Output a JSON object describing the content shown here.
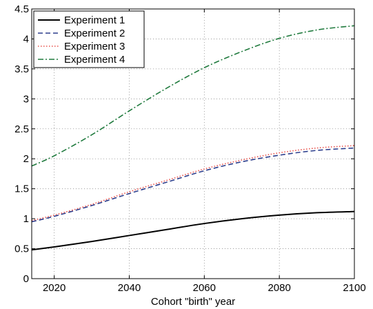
{
  "chart_data": {
    "type": "line",
    "title": "",
    "xlabel": "Cohort \"birth\" year",
    "ylabel": "",
    "xlim": [
      2014,
      2100
    ],
    "ylim": [
      0,
      4.5
    ],
    "xticks": [
      2020,
      2040,
      2060,
      2080,
      2100
    ],
    "yticks": [
      0,
      0.5,
      1,
      1.5,
      2,
      2.5,
      3,
      3.5,
      4,
      4.5
    ],
    "xtick_labels": [
      "2020",
      "2040",
      "2060",
      "2080",
      "2100"
    ],
    "ytick_labels": [
      "0",
      "0.5",
      "1",
      "1.5",
      "2",
      "2.5",
      "3",
      "3.5",
      "4",
      "4.5"
    ],
    "grid": true,
    "legend_position": "top-left",
    "x": [
      2014,
      2020,
      2030,
      2040,
      2050,
      2060,
      2070,
      2080,
      2090,
      2100
    ],
    "series": [
      {
        "name": "Experiment 1",
        "color": "#000000",
        "dash": "solid",
        "values": [
          0.48,
          0.53,
          0.62,
          0.72,
          0.82,
          0.92,
          1.0,
          1.06,
          1.1,
          1.12
        ]
      },
      {
        "name": "Experiment 2",
        "color": "#2b3d8c",
        "dash": "dashed",
        "values": [
          0.95,
          1.04,
          1.22,
          1.42,
          1.61,
          1.8,
          1.95,
          2.06,
          2.14,
          2.18
        ]
      },
      {
        "name": "Experiment 3",
        "color": "#e8504a",
        "dash": "dotted",
        "values": [
          0.97,
          1.06,
          1.24,
          1.45,
          1.64,
          1.83,
          1.98,
          2.1,
          2.18,
          2.22
        ]
      },
      {
        "name": "Experiment 4",
        "color": "#1f7a3d",
        "dash": "dashdot",
        "values": [
          1.88,
          2.05,
          2.4,
          2.8,
          3.18,
          3.52,
          3.79,
          4.01,
          4.15,
          4.22
        ]
      }
    ]
  }
}
